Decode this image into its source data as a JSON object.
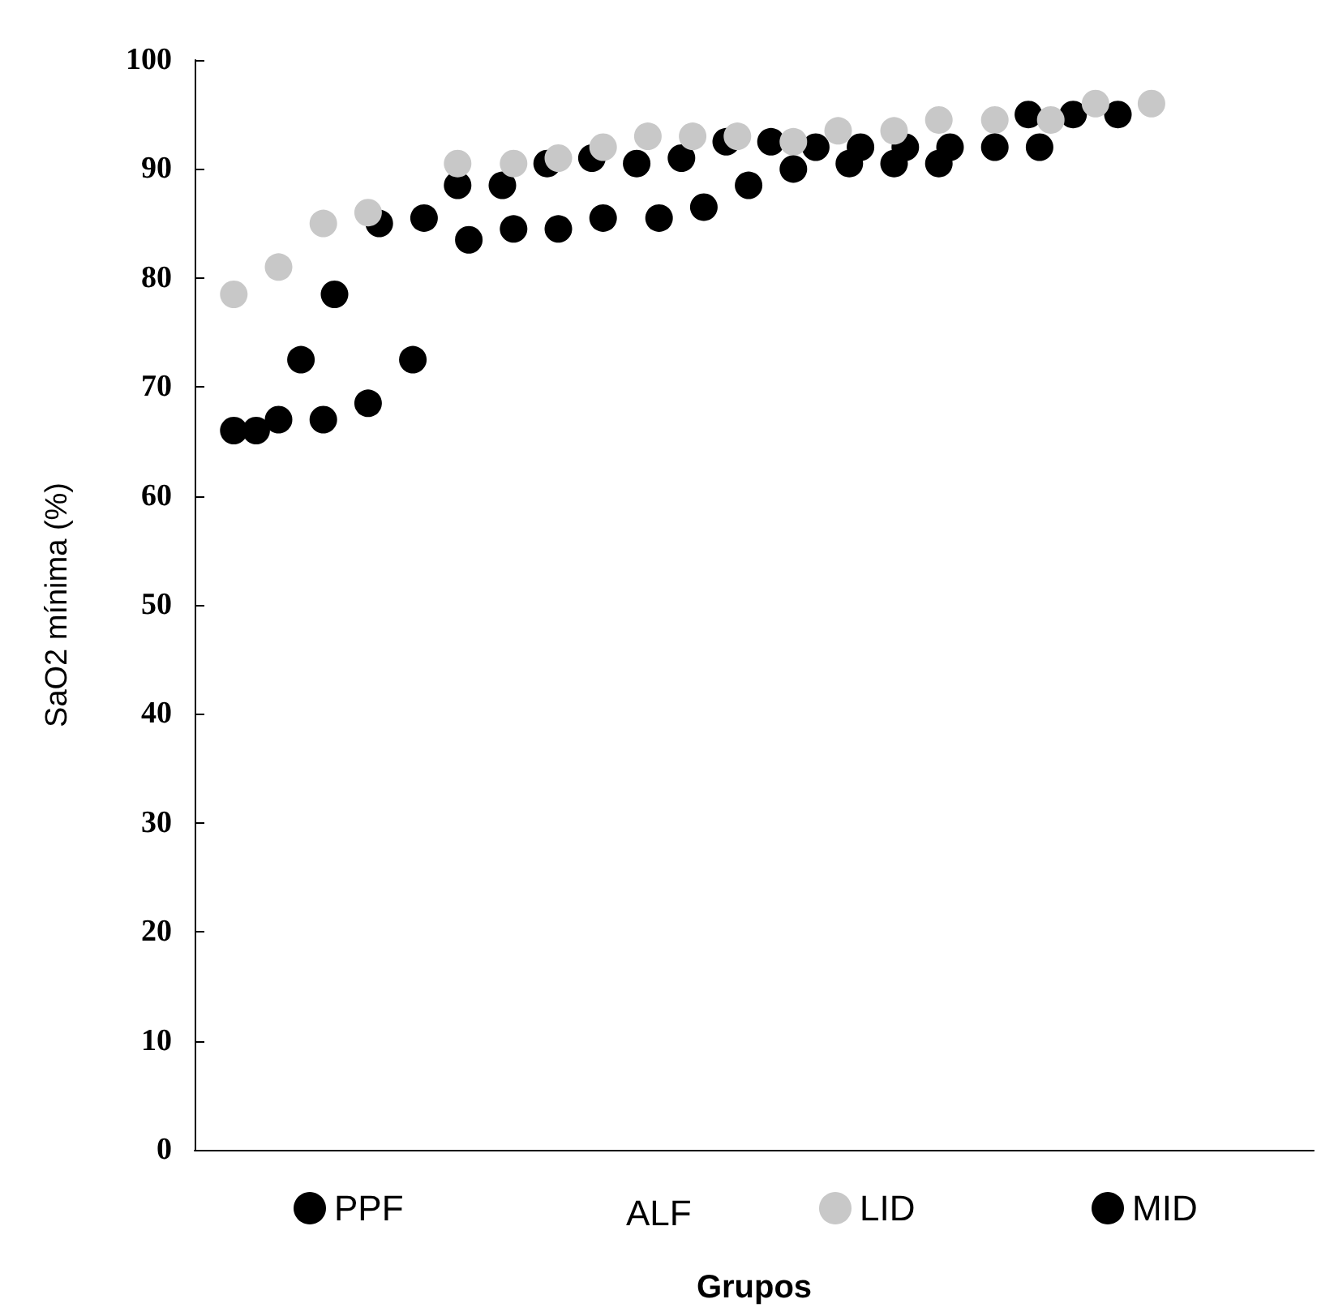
{
  "chart_data": {
    "type": "scatter",
    "xlabel": "Grupos",
    "ylabel": "SaO2 mínima (%)",
    "categories": [
      null,
      null,
      null,
      null,
      null,
      null,
      null,
      null,
      null,
      null,
      null,
      null,
      null,
      null,
      null,
      null,
      null,
      null,
      null,
      null,
      null,
      null,
      null,
      null,
      null,
      null,
      null,
      null,
      null,
      null,
      null,
      null,
      null,
      null,
      null,
      null,
      null,
      null,
      null,
      null,
      null,
      null,
      null,
      null,
      null,
      null,
      null,
      null,
      null,
      null,
      null,
      null,
      null,
      null,
      null,
      null,
      null,
      null,
      null,
      null,
      null,
      null,
      null,
      null,
      null,
      null,
      null,
      null,
      null,
      null,
      null,
      null,
      null,
      null,
      null,
      null,
      null,
      null,
      null,
      null,
      null,
      null,
      null,
      null,
      null,
      null,
      null,
      null,
      null,
      null,
      null,
      null,
      null,
      null,
      null,
      null,
      null,
      null,
      null,
      null
    ],
    "series": [
      {
        "name": "PPF",
        "color": "#000000",
        "values": [
          null,
          null,
          null,
          null,
          null,
          null,
          null,
          null,
          null,
          72.5,
          null,
          null,
          78.5,
          null,
          null,
          null,
          85,
          null,
          null,
          null,
          85.5,
          null,
          null,
          88.5,
          null,
          null,
          null,
          88.5,
          null,
          null,
          null,
          90.5,
          null,
          null,
          null,
          91,
          null,
          null,
          null,
          90.5,
          null,
          null,
          null,
          91,
          null,
          null,
          null,
          92.5,
          null,
          null,
          null,
          92.5,
          null,
          null,
          null,
          92,
          null,
          null,
          null,
          92,
          null,
          null,
          null,
          92,
          null,
          null,
          null,
          92,
          null,
          null,
          null,
          null,
          null,
          null,
          95,
          null,
          null,
          null,
          95,
          null,
          null,
          null,
          95,
          null,
          null,
          null,
          null,
          null,
          null,
          null,
          null,
          null,
          null,
          null,
          null,
          null,
          null,
          null,
          null,
          null
        ]
      },
      {
        "name": "LID",
        "color": "#c8c8c8",
        "values": [
          null,
          null,
          null,
          78.5,
          null,
          null,
          null,
          81,
          null,
          null,
          null,
          85,
          null,
          null,
          null,
          86,
          null,
          null,
          null,
          null,
          null,
          null,
          null,
          90.5,
          null,
          null,
          null,
          null,
          90.5,
          null,
          null,
          null,
          91,
          null,
          null,
          null,
          92,
          null,
          null,
          null,
          93,
          null,
          null,
          null,
          93,
          null,
          null,
          null,
          93,
          null,
          null,
          null,
          null,
          92.5,
          null,
          null,
          null,
          93.5,
          null,
          null,
          null,
          null,
          93.5,
          null,
          null,
          null,
          94.5,
          null,
          null,
          null,
          null,
          94.5,
          null,
          null,
          null,
          null,
          94.5,
          null,
          null,
          null,
          96,
          null,
          null,
          null,
          null,
          96,
          null,
          null,
          null,
          null,
          null,
          null,
          null,
          null,
          null,
          null,
          null,
          null,
          null,
          null
        ]
      },
      {
        "name": "MID",
        "color": "#000000",
        "values": [
          null,
          null,
          null,
          66,
          null,
          66,
          null,
          67,
          null,
          null,
          null,
          67,
          null,
          null,
          null,
          68.5,
          null,
          null,
          null,
          72.5,
          null,
          null,
          null,
          null,
          83.5,
          null,
          null,
          null,
          84.5,
          null,
          null,
          null,
          84.5,
          null,
          null,
          null,
          85.5,
          null,
          null,
          null,
          null,
          85.5,
          null,
          null,
          null,
          86.5,
          null,
          null,
          null,
          88.5,
          null,
          null,
          null,
          90,
          null,
          null,
          null,
          null,
          90.5,
          null,
          null,
          null,
          90.5,
          null,
          null,
          null,
          90.5,
          null,
          null,
          null,
          null,
          92,
          null,
          null,
          null,
          92,
          null,
          null,
          null,
          null,
          null,
          null,
          null,
          null,
          null,
          null,
          null,
          null,
          null,
          null,
          null,
          null,
          null,
          null,
          null,
          null,
          null,
          null,
          null,
          null
        ]
      }
    ],
    "ylim": [
      0,
      100
    ],
    "yticks": [
      0,
      10,
      20,
      30,
      40,
      50,
      60,
      70,
      80,
      90,
      100
    ],
    "annotations": [
      "ALF"
    ],
    "tick_labels": "y",
    "grid": false,
    "legend": "bottom",
    "marker": "circle"
  }
}
